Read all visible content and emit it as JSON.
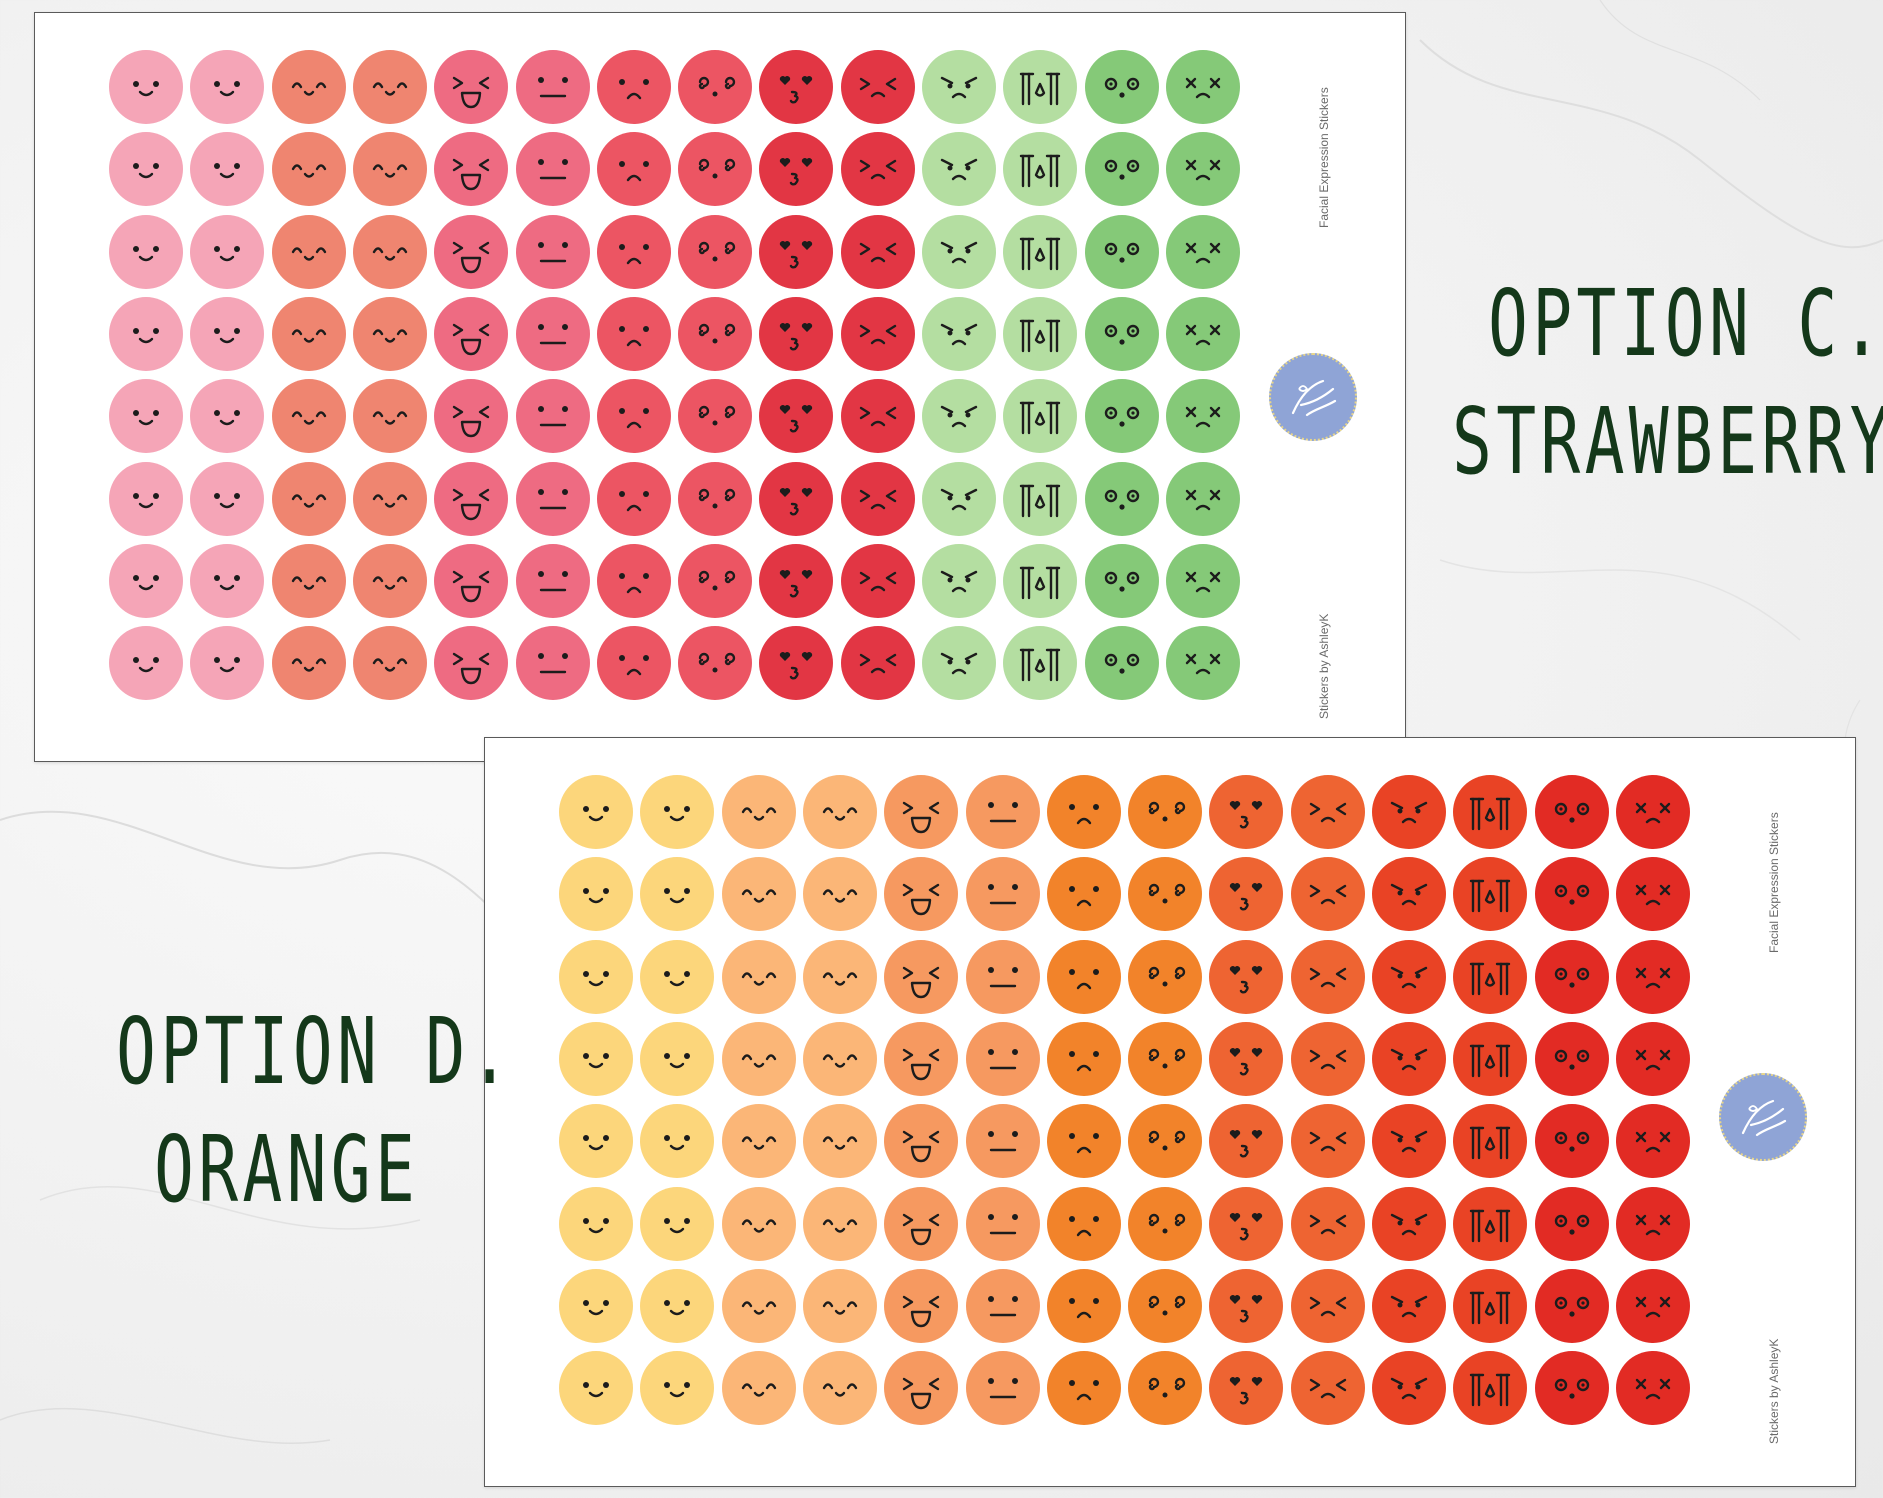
{
  "options": [
    {
      "id": "c",
      "line1": "OPTION C.",
      "line2": "STRAWBERRY",
      "sheet_title": "Facial Expression Stickers",
      "sheet_credit": "Stickers by AshleyK",
      "colors": [
        "#f5a5b7",
        "#f5a5b7",
        "#ef8570",
        "#ef8570",
        "#ee6b82",
        "#ee6b82",
        "#ec5563",
        "#ec5563",
        "#e23644",
        "#e23644",
        "#b4dea1",
        "#b4dea1",
        "#85c978",
        "#85c978"
      ],
      "faces": [
        "smile",
        "smile",
        "happy",
        "happy",
        "laugh",
        "neutral",
        "sad",
        "dizzy",
        "love",
        "grumpy",
        "angry",
        "cry",
        "surprised",
        "dead"
      ]
    },
    {
      "id": "d",
      "line1": "OPTION D.",
      "line2": "ORANGE",
      "sheet_title": "Facial Expression Stickers",
      "sheet_credit": "Stickers by AshleyK",
      "colors": [
        "#fcd67b",
        "#fcd67b",
        "#fbb677",
        "#fbb677",
        "#f69960",
        "#f69960",
        "#f2832a",
        "#f2832a",
        "#ee6432",
        "#ee6432",
        "#e94325",
        "#e94325",
        "#e22b24",
        "#e22b24"
      ],
      "faces": [
        "smile",
        "smile",
        "happy",
        "happy",
        "laugh",
        "neutral",
        "sad",
        "dizzy",
        "love",
        "grumpy",
        "angry",
        "cry",
        "surprised",
        "dead"
      ]
    }
  ],
  "grid": {
    "rows": 8,
    "cols": 14
  },
  "badge_text": "by AshleyK"
}
